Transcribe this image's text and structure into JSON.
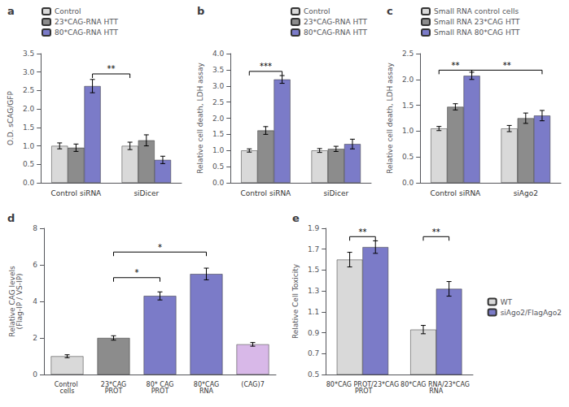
{
  "chart_data": [
    {
      "type": "bar",
      "title": "a",
      "categories": [
        "Control siRNA",
        "siDicer"
      ],
      "series": [
        {
          "name": "Control",
          "color": "#d9d9d9",
          "values": [
            1.0,
            1.0
          ],
          "errors": [
            0.08,
            0.1
          ]
        },
        {
          "name": "23*CAG-RNA HTT",
          "color": "#8c8c8c",
          "values": [
            0.95,
            1.15
          ],
          "errors": [
            0.1,
            0.15
          ]
        },
        {
          "name": "80*CAG-RNA HTT",
          "color": "#7b7bc8",
          "values": [
            2.62,
            0.62
          ],
          "errors": [
            0.18,
            0.1
          ]
        }
      ],
      "ylabel": "O.D. sCAG/GFP",
      "ylim": [
        0,
        3.5
      ],
      "yticks": [
        {
          "value": 0,
          "label": "0.0"
        },
        0.5,
        {
          "value": 1.0,
          "label": "1.0"
        },
        1.5,
        {
          "value": 2.0,
          "label": "2.0"
        },
        2.5,
        {
          "value": 3.0,
          "label": "3.0"
        },
        3.5
      ],
      "legend": "upper left",
      "annotations": [
        {
          "text": "**",
          "y": 2.95,
          "from": [
            "Control siRNA",
            "80*CAG-RNA HTT"
          ],
          "to": [
            "siDicer",
            "Control"
          ]
        }
      ]
    },
    {
      "type": "bar",
      "title": "b",
      "categories": [
        "Control siRNA",
        "siDicer"
      ],
      "series": [
        {
          "name": "Control",
          "color": "#d9d9d9",
          "values": [
            1.0,
            1.0
          ],
          "errors": [
            0.05,
            0.06
          ]
        },
        {
          "name": "23*CAG-RNA HTT",
          "color": "#8c8c8c",
          "values": [
            1.62,
            1.05
          ],
          "errors": [
            0.12,
            0.08
          ]
        },
        {
          "name": "80*CAG-RNA HTT",
          "color": "#7b7bc8",
          "values": [
            3.2,
            1.2
          ],
          "errors": [
            0.12,
            0.15
          ]
        }
      ],
      "ylabel": "Relative cell death, LDH assay",
      "ylim": [
        0,
        4.0
      ],
      "yticks": [
        {
          "value": 0,
          "label": "0.0"
        },
        0.5,
        {
          "value": 1.0,
          "label": "1.0"
        },
        1.5,
        {
          "value": 2.0,
          "label": "2.0"
        },
        2.5,
        {
          "value": 3.0,
          "label": "3.0"
        },
        3.5,
        {
          "value": 4.0,
          "label": "4.0"
        }
      ],
      "legend": "upper right",
      "annotations": [
        {
          "text": "***",
          "y": 3.45,
          "from": [
            "Control siRNA",
            "Control"
          ],
          "to": [
            "Control siRNA",
            "80*CAG-RNA HTT"
          ]
        }
      ]
    },
    {
      "type": "bar",
      "title": "c",
      "categories": [
        "Control siRNA",
        "siAgo2"
      ],
      "series": [
        {
          "name": "Small RNA control cells",
          "color": "#d9d9d9",
          "values": [
            1.05,
            1.05
          ],
          "errors": [
            0.04,
            0.06
          ]
        },
        {
          "name": "Small RNA 23*CAG HTT",
          "color": "#8c8c8c",
          "values": [
            1.47,
            1.25
          ],
          "errors": [
            0.06,
            0.1
          ]
        },
        {
          "name": "Small RNA 80*CAG HTT",
          "color": "#7b7bc8",
          "values": [
            2.07,
            1.3
          ],
          "errors": [
            0.07,
            0.1
          ]
        }
      ],
      "ylabel": "Relative cell death, LDH assay",
      "ylim": [
        0,
        2.5
      ],
      "yticks": [
        {
          "value": 0,
          "label": "0.0"
        },
        0.5,
        {
          "value": 1.0,
          "label": "1.0"
        },
        1.5,
        {
          "value": 2.0,
          "label": "2.0"
        },
        2.5
      ],
      "legend": "upper left",
      "annotations": [
        {
          "text": "**",
          "y": 2.18,
          "from": [
            "Control siRNA",
            "Small RNA control cells"
          ],
          "to": [
            "Control siRNA",
            "Small RNA 80*CAG HTT"
          ]
        },
        {
          "text": "**",
          "y": 2.18,
          "from": [
            "Control siRNA",
            "Small RNA 80*CAG HTT"
          ],
          "to": [
            "siAgo2",
            "Small RNA 80*CAG HTT"
          ]
        }
      ]
    },
    {
      "type": "bar",
      "title": "d",
      "categories": [
        "Control cells",
        "23*CAG\nPROT",
        "80* CAG\nPROT",
        "80*CAG\nRNA",
        "(CAG)7"
      ],
      "values": [
        1.0,
        2.0,
        4.3,
        5.5,
        1.65
      ],
      "errors": [
        0.08,
        0.12,
        0.22,
        0.32,
        0.1
      ],
      "colors": [
        "#d9d9d9",
        "#8c8c8c",
        "#7b7bc8",
        "#7b7bc8",
        "#d8b8e8"
      ],
      "ylabel": "Relative CAG levels\n(Flag-IP / VS-IP)",
      "ylim": [
        0,
        8
      ],
      "yticks": [
        0,
        2,
        4,
        6,
        8
      ],
      "annotations": [
        {
          "text": "*",
          "y": 5.3,
          "from": "23*CAG\nPROT",
          "to": "80* CAG\nPROT"
        },
        {
          "text": "*",
          "y": 6.7,
          "from": "23*CAG\nPROT",
          "to": "80*CAG\nRNA"
        }
      ]
    },
    {
      "type": "bar",
      "title": "e",
      "categories": [
        "80*CAG PROT/23*CAG PROT",
        "80*CAG RNA/23*CAG RNA"
      ],
      "series": [
        {
          "name": "WT",
          "color": "#d9d9d9",
          "values": [
            1.6,
            0.93
          ],
          "errors": [
            0.07,
            0.04
          ]
        },
        {
          "name": "siAgo2/FlagAgo2",
          "color": "#7b7bc8",
          "values": [
            1.72,
            1.32
          ],
          "errors": [
            0.06,
            0.07
          ]
        }
      ],
      "ylabel": "Relative Cell Toxicity",
      "ylim": [
        0.5,
        1.9
      ],
      "yticks": [
        0.5,
        0.7,
        0.9,
        1.1,
        1.3,
        1.5,
        1.7,
        1.9
      ],
      "legend": "right",
      "annotations": [
        {
          "text": "**",
          "y": 1.82,
          "from": [
            "80*CAG PROT/23*CAG PROT",
            "WT"
          ],
          "to": [
            "80*CAG PROT/23*CAG PROT",
            "siAgo2/FlagAgo2"
          ]
        },
        {
          "text": "**",
          "y": 1.82,
          "from": [
            "80*CAG RNA/23*CAG RNA",
            "WT"
          ],
          "to": [
            "80*CAG RNA/23*CAG RNA",
            "siAgo2/FlagAgo2"
          ]
        }
      ]
    }
  ]
}
